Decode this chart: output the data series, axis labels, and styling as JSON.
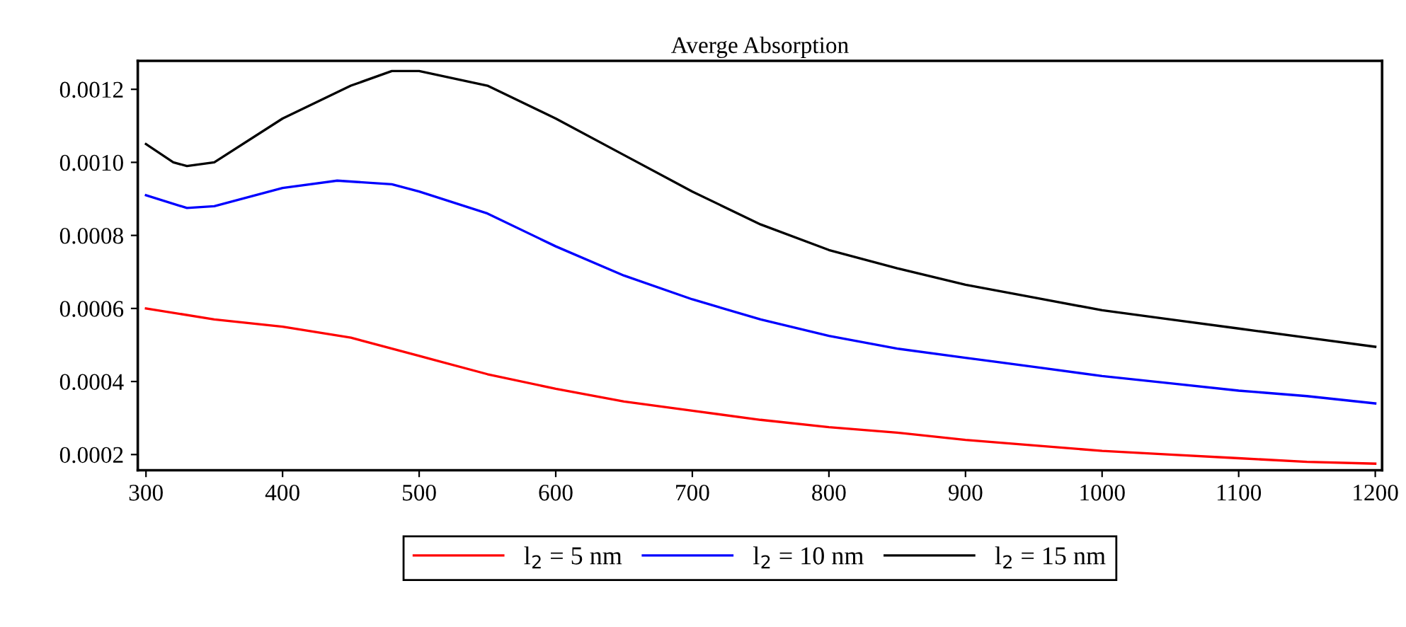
{
  "chart_data": {
    "type": "line",
    "title": "Averge Absorption",
    "legend": "bottom",
    "grid": false,
    "xlim": [
      294,
      1205
    ],
    "ylim": [
      0.000157,
      0.001278
    ],
    "xticks": [
      300,
      400,
      500,
      600,
      700,
      800,
      900,
      1000,
      1100,
      1200
    ],
    "yticks": [
      {
        "value": 0.0002,
        "label": "0.0002"
      },
      {
        "value": 0.0004,
        "label": "0.0004"
      },
      {
        "value": 0.0006,
        "label": "0.0006"
      },
      {
        "value": 0.0008,
        "label": "0.0008"
      },
      {
        "value": 0.001,
        "label": "0.0010"
      },
      {
        "value": 0.0012,
        "label": "0.0012"
      }
    ],
    "series": [
      {
        "name": "l$_{2}$ = 5 nm",
        "color": "#ff0000",
        "x": [
          300,
          350,
          400,
          450,
          500,
          550,
          600,
          650,
          700,
          750,
          800,
          850,
          900,
          950,
          1000,
          1050,
          1100,
          1150,
          1200
        ],
        "values": [
          0.0006,
          0.00057,
          0.00055,
          0.00052,
          0.00047,
          0.00042,
          0.00038,
          0.000345,
          0.00032,
          0.000295,
          0.000275,
          0.00026,
          0.00024,
          0.000225,
          0.00021,
          0.0002,
          0.00019,
          0.00018,
          0.000175
        ]
      },
      {
        "name": "l$_{2}$ = 10 nm",
        "color": "#0000ff",
        "x": [
          300,
          330,
          350,
          400,
          440,
          480,
          500,
          550,
          600,
          650,
          700,
          750,
          800,
          850,
          900,
          950,
          1000,
          1050,
          1100,
          1150,
          1200
        ],
        "values": [
          0.00091,
          0.000875,
          0.00088,
          0.00093,
          0.00095,
          0.00094,
          0.00092,
          0.00086,
          0.00077,
          0.00069,
          0.000625,
          0.00057,
          0.000525,
          0.00049,
          0.000465,
          0.00044,
          0.000415,
          0.000395,
          0.000375,
          0.00036,
          0.00034
        ]
      },
      {
        "name": "l$_{2}$ = 15 nm",
        "color": "#000000",
        "x": [
          300,
          320,
          330,
          350,
          400,
          450,
          480,
          500,
          550,
          600,
          650,
          700,
          750,
          800,
          850,
          900,
          950,
          1000,
          1050,
          1100,
          1150,
          1200
        ],
        "values": [
          0.00105,
          0.001,
          0.00099,
          0.001,
          0.00112,
          0.00121,
          0.00125,
          0.00125,
          0.00121,
          0.00112,
          0.00102,
          0.00092,
          0.00083,
          0.00076,
          0.00071,
          0.000665,
          0.00063,
          0.000595,
          0.00057,
          0.000545,
          0.00052,
          0.000495
        ]
      }
    ]
  }
}
